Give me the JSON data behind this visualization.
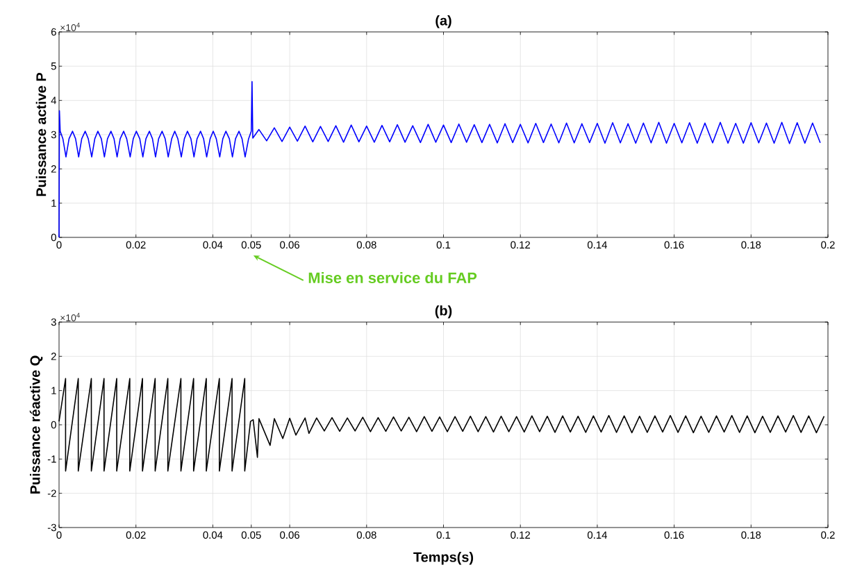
{
  "chart_data": [
    {
      "type": "line",
      "title": "(a)",
      "ylabel": "Puissance active P",
      "grid": true,
      "annotations": [
        "×10$^{4}$",
        "Mise en service du FAP"
      ],
      "xlim": [
        0,
        0.2
      ],
      "xticks": [
        0,
        0.02,
        0.04,
        0.05,
        0.06,
        0.08,
        0.1,
        0.12,
        0.14,
        0.16,
        0.18,
        0.2
      ],
      "ylim": [
        0,
        6
      ],
      "yticks": [
        0,
        1,
        2,
        3,
        4,
        5,
        6
      ],
      "series": [
        {
          "color": "#0000ff",
          "x": [
            0,
            0.0001,
            0.0003,
            0.001,
            0.0018,
            0.0026,
            0.0035,
            0.0043,
            0.0051,
            0.0059,
            0.0068,
            0.0076,
            0.0085,
            0.0093,
            0.0101,
            0.011,
            0.0118,
            0.0126,
            0.0135,
            0.0143,
            0.0151,
            0.0159,
            0.0168,
            0.0176,
            0.0185,
            0.0193,
            0.0201,
            0.021,
            0.0218,
            0.0226,
            0.0235,
            0.0243,
            0.0251,
            0.0259,
            0.0268,
            0.0276,
            0.0284,
            0.0293,
            0.0301,
            0.0309,
            0.0318,
            0.0326,
            0.0334,
            0.0343,
            0.0351,
            0.0359,
            0.0368,
            0.0376,
            0.0384,
            0.0393,
            0.0401,
            0.0409,
            0.0418,
            0.0426,
            0.0434,
            0.0443,
            0.0451,
            0.0459,
            0.0468,
            0.0476,
            0.0484,
            0.0493,
            0.05,
            0.0502,
            0.0504,
            0.052,
            0.054,
            0.056,
            0.058,
            0.06,
            0.062,
            0.064,
            0.066,
            0.068,
            0.07,
            0.072,
            0.074,
            0.076,
            0.078,
            0.08,
            0.082,
            0.084,
            0.086,
            0.088,
            0.09,
            0.092,
            0.094,
            0.096,
            0.098,
            0.1,
            0.102,
            0.104,
            0.106,
            0.108,
            0.11,
            0.112,
            0.114,
            0.116,
            0.118,
            0.12,
            0.122,
            0.124,
            0.126,
            0.128,
            0.13,
            0.132,
            0.134,
            0.136,
            0.138,
            0.14,
            0.142,
            0.144,
            0.146,
            0.148,
            0.15,
            0.152,
            0.154,
            0.156,
            0.158,
            0.16,
            0.162,
            0.164,
            0.166,
            0.168,
            0.17,
            0.172,
            0.174,
            0.176,
            0.178,
            0.18,
            0.182,
            0.184,
            0.186,
            0.188,
            0.19,
            0.192,
            0.194,
            0.196,
            0.198
          ],
          "values": [
            0,
            3.7,
            3.1,
            2.88,
            2.35,
            2.88,
            3.1,
            2.88,
            2.35,
            2.88,
            3.1,
            2.88,
            2.35,
            2.88,
            3.1,
            2.88,
            2.35,
            2.88,
            3.1,
            2.88,
            2.35,
            2.88,
            3.1,
            2.88,
            2.35,
            2.88,
            3.1,
            2.88,
            2.35,
            2.88,
            3.1,
            2.88,
            2.35,
            2.88,
            3.1,
            2.88,
            2.35,
            2.88,
            3.1,
            2.88,
            2.35,
            2.88,
            3.1,
            2.88,
            2.35,
            2.88,
            3.1,
            2.88,
            2.35,
            2.88,
            3.1,
            2.88,
            2.35,
            2.88,
            3.1,
            2.88,
            2.35,
            2.88,
            3.1,
            2.88,
            2.35,
            2.88,
            3.1,
            4.55,
            2.9,
            3.15,
            2.82,
            3.2,
            2.8,
            3.22,
            2.81,
            3.25,
            2.79,
            3.24,
            2.8,
            3.26,
            2.78,
            3.28,
            2.79,
            3.25,
            2.78,
            3.27,
            2.79,
            3.29,
            2.78,
            3.26,
            2.77,
            3.3,
            2.78,
            3.28,
            2.77,
            3.31,
            2.78,
            3.29,
            2.77,
            3.3,
            2.76,
            3.32,
            2.77,
            3.3,
            2.76,
            3.33,
            2.77,
            3.31,
            2.76,
            3.34,
            2.76,
            3.32,
            2.77,
            3.33,
            2.75,
            3.35,
            2.76,
            3.32,
            2.75,
            3.34,
            2.76,
            3.36,
            2.75,
            3.33,
            2.76,
            3.35,
            2.75,
            3.34,
            2.76,
            3.36,
            2.75,
            3.33,
            2.75,
            3.35,
            2.76,
            3.34,
            2.75,
            3.36,
            2.74,
            3.35,
            2.75,
            3.34,
            2.76
          ]
        }
      ]
    },
    {
      "type": "line",
      "title": "(b)",
      "ylabel": "Puissance réactive Q",
      "xlabel": "Temps(s)",
      "grid": true,
      "annotations": [
        "×10$^{4}$"
      ],
      "xlim": [
        0,
        0.2
      ],
      "xticks": [
        0,
        0.02,
        0.04,
        0.05,
        0.06,
        0.08,
        0.1,
        0.12,
        0.14,
        0.16,
        0.18,
        0.2
      ],
      "ylim": [
        -3,
        3
      ],
      "yticks": [
        -3,
        -2,
        -1,
        0,
        1,
        2,
        3
      ],
      "series": [
        {
          "color": "#000000",
          "x": [
            0,
            0.0017,
            0.0017,
            0.005,
            0.005,
            0.0084,
            0.0084,
            0.0117,
            0.0117,
            0.015,
            0.015,
            0.0184,
            0.0184,
            0.0217,
            0.0217,
            0.025,
            0.025,
            0.0283,
            0.0283,
            0.0317,
            0.0317,
            0.035,
            0.035,
            0.0383,
            0.0383,
            0.0417,
            0.0417,
            0.045,
            0.045,
            0.0483,
            0.0483,
            0.0498,
            0.0505,
            0.0516,
            0.052,
            0.0549,
            0.056,
            0.0582,
            0.06,
            0.0616,
            0.064,
            0.065,
            0.067,
            0.069,
            0.071,
            0.073,
            0.075,
            0.077,
            0.079,
            0.081,
            0.083,
            0.085,
            0.087,
            0.089,
            0.091,
            0.093,
            0.095,
            0.097,
            0.099,
            0.101,
            0.103,
            0.105,
            0.107,
            0.109,
            0.111,
            0.113,
            0.115,
            0.117,
            0.119,
            0.121,
            0.123,
            0.125,
            0.127,
            0.129,
            0.131,
            0.133,
            0.135,
            0.137,
            0.139,
            0.141,
            0.143,
            0.145,
            0.147,
            0.149,
            0.151,
            0.153,
            0.155,
            0.157,
            0.159,
            0.161,
            0.163,
            0.165,
            0.167,
            0.169,
            0.171,
            0.173,
            0.175,
            0.177,
            0.179,
            0.181,
            0.183,
            0.185,
            0.187,
            0.189,
            0.191,
            0.193,
            0.195,
            0.197,
            0.199
          ],
          "values": [
            0.1,
            1.35,
            -1.35,
            1.35,
            -1.35,
            1.35,
            -1.35,
            1.35,
            -1.35,
            1.35,
            -1.35,
            1.35,
            -1.35,
            1.35,
            -1.35,
            1.35,
            -1.35,
            1.35,
            -1.35,
            1.35,
            -1.35,
            1.35,
            -1.35,
            1.35,
            -1.35,
            1.35,
            -1.35,
            1.35,
            -1.35,
            1.35,
            -1.35,
            0.1,
            0.15,
            -0.95,
            0.18,
            -0.6,
            0.18,
            -0.4,
            0.19,
            -0.3,
            0.2,
            -0.25,
            0.2,
            -0.18,
            0.21,
            -0.19,
            0.2,
            -0.18,
            0.22,
            -0.2,
            0.21,
            -0.19,
            0.23,
            -0.18,
            0.22,
            -0.2,
            0.24,
            -0.19,
            0.23,
            -0.2,
            0.24,
            -0.19,
            0.25,
            -0.2,
            0.24,
            -0.21,
            0.25,
            -0.2,
            0.24,
            -0.21,
            0.26,
            -0.2,
            0.25,
            -0.22,
            0.26,
            -0.21,
            0.25,
            -0.22,
            0.26,
            -0.21,
            0.27,
            -0.22,
            0.26,
            -0.23,
            0.25,
            -0.22,
            0.26,
            -0.21,
            0.27,
            -0.22,
            0.26,
            -0.23,
            0.25,
            -0.22,
            0.26,
            -0.21,
            0.27,
            -0.22,
            0.26,
            -0.23,
            0.25,
            -0.22,
            0.26,
            -0.21,
            0.27,
            -0.22,
            0.26,
            -0.23,
            0.25
          ]
        }
      ]
    }
  ]
}
